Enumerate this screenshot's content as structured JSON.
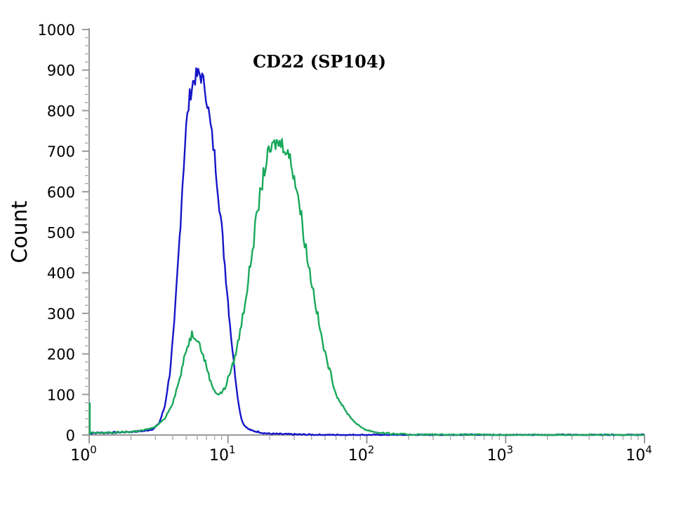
{
  "chart_data": {
    "type": "line",
    "title": "CD22 (SP104)",
    "xlabel": "",
    "ylabel": "Count",
    "x_scale": "log",
    "xlim": [
      1,
      10000
    ],
    "ylim": [
      0,
      1000
    ],
    "yticks": [
      "0",
      "100",
      "200",
      "300",
      "400",
      "500",
      "600",
      "700",
      "800",
      "900",
      "1000"
    ],
    "xticks": [
      {
        "base": "10",
        "exp": "0"
      },
      {
        "base": "10",
        "exp": "1"
      },
      {
        "base": "10",
        "exp": "2"
      },
      {
        "base": "10",
        "exp": "3"
      },
      {
        "base": "10",
        "exp": "4"
      }
    ],
    "grid": false,
    "series": [
      {
        "color": "#1515c8",
        "x": [
          1,
          1.5,
          2,
          2.5,
          2.9,
          3.2,
          3.5,
          3.8,
          4.1,
          4.4,
          4.7,
          5.0,
          5.3,
          5.6,
          5.9,
          6.2,
          6.5,
          6.8,
          7.1,
          7.5,
          8.0,
          8.5,
          9.0,
          9.5,
          10.0,
          10.5,
          11.0,
          11.5,
          12.0,
          12.5,
          13.0,
          14.0,
          15.0,
          16.5,
          18.0,
          20.0,
          25.0,
          35.0,
          50.0,
          70.0,
          100.0,
          1000.0,
          10000.0
        ],
        "y": [
          5,
          6,
          8,
          10,
          15,
          30,
          70,
          150,
          270,
          440,
          620,
          760,
          835,
          870,
          885,
          890,
          880,
          860,
          820,
          760,
          690,
          600,
          510,
          420,
          330,
          250,
          180,
          120,
          70,
          40,
          25,
          15,
          10,
          8,
          5,
          3,
          2,
          1,
          0,
          0,
          0,
          0,
          0
        ]
      },
      {
        "color": "#19a85a",
        "x": [
          1,
          1.5,
          2,
          2.5,
          3.0,
          3.5,
          4.0,
          4.5,
          5.0,
          5.5,
          6.0,
          6.5,
          7.0,
          7.5,
          8.0,
          8.5,
          9.0,
          9.5,
          10.0,
          11.0,
          12.0,
          13.0,
          14.0,
          15.0,
          16.0,
          17.0,
          18.0,
          19.0,
          20.0,
          22.0,
          24.0,
          26.0,
          28.0,
          30.0,
          32.0,
          35.0,
          38.0,
          42.0,
          46.0,
          50.0,
          55.0,
          60.0,
          70.0,
          80.0,
          90.0,
          100.0,
          120.0,
          150.0,
          200.0,
          1000.0,
          10000.0
        ],
        "y": [
          5,
          6,
          8,
          12,
          20,
          40,
          80,
          140,
          210,
          250,
          240,
          205,
          170,
          130,
          110,
          100,
          105,
          115,
          140,
          180,
          240,
          310,
          380,
          460,
          530,
          590,
          640,
          680,
          700,
          720,
          720,
          710,
          680,
          640,
          590,
          500,
          420,
          340,
          260,
          200,
          150,
          100,
          60,
          35,
          20,
          12,
          6,
          3,
          1,
          0,
          0
        ]
      }
    ]
  }
}
